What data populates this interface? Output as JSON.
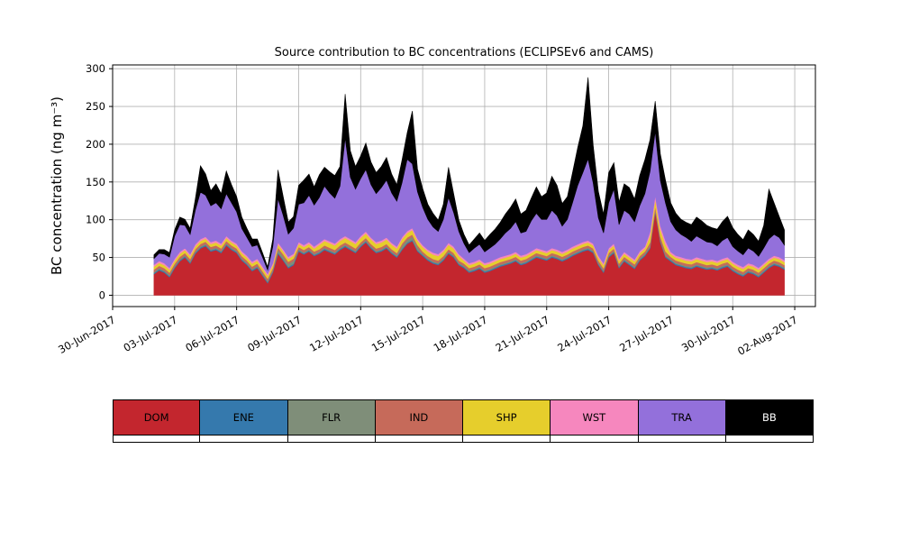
{
  "chart_data": {
    "type": "area",
    "stacked": true,
    "title": "Source contribution to BC concentrations (ECLIPSEv6 and CAMS)",
    "xlabel": "",
    "ylabel": "BC concentration (ng m⁻³)",
    "ylim": [
      0,
      300
    ],
    "xlim": [
      0,
      33
    ],
    "grid": true,
    "legend_position": "bottom",
    "y_ticks": [
      0,
      50,
      100,
      150,
      200,
      250,
      300
    ],
    "x_ticks": [
      {
        "day": 0,
        "label": "30-Jun-2017"
      },
      {
        "day": 3,
        "label": "03-Jul-2017"
      },
      {
        "day": 6,
        "label": "06-Jul-2017"
      },
      {
        "day": 9,
        "label": "09-Jul-2017"
      },
      {
        "day": 12,
        "label": "12-Jul-2017"
      },
      {
        "day": 15,
        "label": "15-Jul-2017"
      },
      {
        "day": 18,
        "label": "18-Jul-2017"
      },
      {
        "day": 21,
        "label": "21-Jul-2017"
      },
      {
        "day": 24,
        "label": "24-Jul-2017"
      },
      {
        "day": 27,
        "label": "27-Jul-2017"
      },
      {
        "day": 30,
        "label": "30-Jul-2017"
      },
      {
        "day": 33,
        "label": "02-Aug-2017"
      }
    ],
    "x_start": 2.0,
    "x_step": 0.25,
    "series": [
      {
        "name": "DOM",
        "color": "#c3262e",
        "values": [
          28,
          33,
          30,
          24,
          36,
          45,
          50,
          42,
          55,
          62,
          65,
          58,
          60,
          56,
          66,
          60,
          56,
          46,
          40,
          32,
          36,
          26,
          16,
          30,
          55,
          46,
          36,
          40,
          58,
          54,
          58,
          52,
          55,
          60,
          57,
          54,
          60,
          64,
          60,
          56,
          64,
          70,
          62,
          56,
          58,
          62,
          55,
          50,
          60,
          68,
          72,
          58,
          52,
          46,
          42,
          40,
          46,
          55,
          50,
          40,
          36,
          30,
          32,
          35,
          30,
          32,
          35,
          38,
          40,
          42,
          45,
          40,
          42,
          46,
          50,
          48,
          46,
          50,
          48,
          45,
          48,
          52,
          55,
          58,
          60,
          56,
          40,
          30,
          50,
          56,
          36,
          45,
          40,
          35,
          46,
          52,
          62,
          110,
          70,
          50,
          45,
          40,
          38,
          36,
          35,
          38,
          36,
          34,
          35,
          33,
          36,
          38,
          32,
          28,
          25,
          30,
          28,
          24,
          30,
          36,
          40,
          38,
          34
        ]
      },
      {
        "name": "ENE",
        "color": "#3579ad",
        "values": [
          1.5,
          1.5,
          1.5,
          1.5,
          1.5,
          1.5,
          1.5,
          1.5,
          1.5,
          1.5,
          1.5,
          1.5,
          1.5,
          1.5,
          1.5,
          1.5,
          1.5,
          1.5,
          1.5,
          1.5,
          1.5,
          1.5,
          1.5,
          1.5,
          1.5,
          1.5,
          1.5,
          1.5,
          1.5,
          1.5,
          1.5,
          1.5,
          1.5,
          1.5,
          1.5,
          1.5,
          1.5,
          1.5,
          1.5,
          1.5,
          1.5,
          1.5,
          1.5,
          1.5,
          1.5,
          1.5,
          1.5,
          1.5,
          1.5,
          1.5,
          1.5,
          1.5,
          1.5,
          1.5,
          1.5,
          1.5,
          1.5,
          1.5,
          1.5,
          1.5,
          1.5,
          1.5,
          1.5,
          1.5,
          1.5,
          1.5,
          1.5,
          1.5,
          1.5,
          1.5,
          1.5,
          1.5,
          1.5,
          1.5,
          1.5,
          1.5,
          1.5,
          1.5,
          1.5,
          1.5,
          1.5,
          1.5,
          1.5,
          1.5,
          1.5,
          1.5,
          1.5,
          1.5,
          1.5,
          1.5,
          1.5,
          1.5,
          1.5,
          1.5,
          1.5,
          1.5,
          1.5,
          1.5,
          1.5,
          1.5,
          1.5,
          1.5,
          1.5,
          1.5,
          1.5,
          1.5,
          1.5,
          1.5,
          1.5,
          1.5,
          1.5,
          1.5,
          1.5,
          1.5,
          1.5,
          1.5,
          1.5,
          1.5,
          1.5,
          1.5,
          1.5,
          1.5,
          1.5
        ]
      },
      {
        "name": "FLR",
        "color": "#7f8e79",
        "values": [
          1.5,
          1.5,
          1.5,
          1.5,
          1.5,
          1.5,
          1.5,
          1.5,
          1.5,
          1.5,
          1.5,
          1.5,
          1.5,
          1.5,
          1.5,
          1.5,
          1.5,
          1.5,
          1.5,
          1.5,
          1.5,
          1.5,
          1.5,
          1.5,
          4,
          4,
          4,
          4,
          1.5,
          1.5,
          1.5,
          1.5,
          1.5,
          1.5,
          1.5,
          1.5,
          1.5,
          1.5,
          1.5,
          1.5,
          1.5,
          1.5,
          1.5,
          1.5,
          1.5,
          1.5,
          1.5,
          1.5,
          4,
          4,
          4,
          4,
          1.5,
          1.5,
          1.5,
          1.5,
          1.5,
          1.5,
          1.5,
          1.5,
          1.5,
          1.5,
          1.5,
          1.5,
          1.5,
          1.5,
          1.5,
          1.5,
          1.5,
          1.5,
          1.5,
          1.5,
          1.5,
          1.5,
          1.5,
          1.5,
          1.5,
          1.5,
          1.5,
          1.5,
          1.5,
          1.5,
          1.5,
          1.5,
          1.5,
          1.5,
          1.5,
          1.5,
          1.5,
          1.5,
          1.5,
          1.5,
          1.5,
          1.5,
          1.5,
          1.5,
          1.5,
          1.5,
          1.5,
          1.5,
          1.5,
          1.5,
          1.5,
          1.5,
          1.5,
          1.5,
          1.5,
          1.5,
          1.5,
          1.5,
          1.5,
          1.5,
          1.5,
          1.5,
          1.5,
          1.5,
          1.5,
          1.5,
          1.5,
          1.5,
          1.5,
          1.5,
          1.5
        ]
      },
      {
        "name": "IND",
        "color": "#c66a5a",
        "values": [
          3,
          3,
          3,
          3,
          3,
          3,
          3,
          3,
          3,
          3,
          3,
          3,
          3,
          3,
          3,
          3,
          3,
          3,
          3,
          3,
          3,
          3,
          3,
          3,
          3,
          3,
          3,
          3,
          3,
          3,
          3,
          3,
          3,
          3,
          3,
          3,
          3,
          3,
          3,
          3,
          3,
          3,
          3,
          3,
          3,
          3,
          3,
          3,
          3,
          3,
          3,
          3,
          3,
          3,
          3,
          3,
          3,
          3,
          3,
          3,
          3,
          3,
          3,
          3,
          3,
          3,
          3,
          3,
          3,
          3,
          3,
          3,
          3,
          3,
          3,
          3,
          3,
          3,
          3,
          3,
          3,
          3,
          3,
          3,
          3,
          3,
          3,
          3,
          3,
          3,
          3,
          3,
          3,
          3,
          3,
          3,
          5,
          5,
          5,
          5,
          3,
          3,
          3,
          3,
          3,
          3,
          3,
          3,
          3,
          3,
          3,
          3,
          3,
          3,
          3,
          3,
          3,
          3,
          3,
          3,
          3,
          3,
          3
        ]
      },
      {
        "name": "SHP",
        "color": "#e6ce2c",
        "values": [
          4,
          4,
          4,
          4,
          4,
          4,
          4,
          4,
          4,
          4,
          4,
          4,
          4,
          4,
          4,
          4,
          4,
          4,
          4,
          4,
          4,
          4,
          4,
          4,
          4,
          4,
          4,
          4,
          4,
          4,
          4,
          4,
          6,
          6,
          6,
          6,
          6,
          6,
          6,
          6,
          6,
          6,
          6,
          6,
          6,
          6,
          6,
          6,
          6,
          6,
          6,
          6,
          6,
          6,
          6,
          6,
          6,
          6,
          6,
          6,
          4,
          4,
          4,
          4,
          4,
          4,
          4,
          4,
          4,
          4,
          4,
          4,
          4,
          4,
          4,
          4,
          4,
          4,
          4,
          4,
          4,
          4,
          4,
          4,
          4,
          4,
          4,
          4,
          4,
          4,
          4,
          4,
          4,
          4,
          4,
          4,
          9,
          9,
          9,
          9,
          4,
          4,
          4,
          4,
          4,
          4,
          4,
          4,
          4,
          4,
          4,
          4,
          4,
          4,
          4,
          4,
          4,
          4,
          4,
          4,
          4,
          4,
          4
        ]
      },
      {
        "name": "WST",
        "color": "#f687be",
        "values": [
          2.5,
          2.5,
          2.5,
          2.5,
          2.5,
          2.5,
          2.5,
          2.5,
          2.5,
          2.5,
          2.5,
          2.5,
          2.5,
          2.5,
          2.5,
          2.5,
          2.5,
          2.5,
          2.5,
          2.5,
          2.5,
          2.5,
          2.5,
          2.5,
          2.5,
          2.5,
          2.5,
          2.5,
          2.5,
          2.5,
          2.5,
          2.5,
          2.5,
          2.5,
          2.5,
          2.5,
          2.5,
          2.5,
          2.5,
          2.5,
          2.5,
          2.5,
          2.5,
          2.5,
          2.5,
          2.5,
          2.5,
          2.5,
          2.5,
          2.5,
          2.5,
          2.5,
          2.5,
          2.5,
          2.5,
          2.5,
          2.5,
          2.5,
          2.5,
          2.5,
          2.5,
          2.5,
          2.5,
          2.5,
          2.5,
          2.5,
          2.5,
          2.5,
          2.5,
          2.5,
          2.5,
          2.5,
          2.5,
          2.5,
          2.5,
          2.5,
          2.5,
          2.5,
          2.5,
          2.5,
          2.5,
          2.5,
          2.5,
          2.5,
          2.5,
          2.5,
          2.5,
          2.5,
          2.5,
          2.5,
          2.5,
          2.5,
          2.5,
          2.5,
          2.5,
          2.5,
          5,
          5,
          5,
          5,
          2.5,
          2.5,
          2.5,
          2.5,
          2.5,
          2.5,
          2.5,
          2.5,
          2.5,
          2.5,
          2.5,
          2.5,
          2.5,
          2.5,
          2.5,
          2.5,
          2.5,
          2.5,
          2.5,
          2.5,
          2.5,
          2.5,
          2.5
        ]
      },
      {
        "name": "TRA",
        "color": "#9370db",
        "values": [
          8,
          10,
          12,
          14,
          30,
          36,
          30,
          26,
          45,
          62,
          55,
          48,
          50,
          46,
          56,
          50,
          42,
          30,
          24,
          20,
          18,
          12,
          5,
          22,
          58,
          45,
          30,
          34,
          50,
          56,
          62,
          55,
          60,
          70,
          64,
          60,
          70,
          130,
          82,
          70,
          76,
          82,
          70,
          64,
          70,
          76,
          66,
          60,
          72,
          95,
          85,
          62,
          50,
          40,
          34,
          30,
          40,
          60,
          45,
          30,
          20,
          14,
          18,
          20,
          15,
          18,
          20,
          24,
          30,
          34,
          40,
          30,
          30,
          40,
          46,
          40,
          42,
          50,
          45,
          34,
          40,
          58,
          78,
          92,
          108,
          80,
          50,
          40,
          60,
          72,
          45,
          55,
          55,
          50,
          60,
          70,
          80,
          85,
          60,
          50,
          40,
          34,
          30,
          28,
          24,
          28,
          26,
          24,
          22,
          20,
          24,
          26,
          20,
          18,
          16,
          20,
          18,
          15,
          20,
          26,
          28,
          26,
          20
        ]
      },
      {
        "name": "BB",
        "color": "#000000",
        "values": [
          5,
          5,
          6,
          6,
          8,
          10,
          8,
          8,
          15,
          35,
          28,
          20,
          25,
          20,
          30,
          24,
          20,
          15,
          12,
          10,
          8,
          6,
          4,
          10,
          38,
          25,
          16,
          15,
          25,
          30,
          28,
          24,
          30,
          25,
          28,
          30,
          26,
          58,
          35,
          30,
          30,
          35,
          30,
          28,
          28,
          30,
          25,
          22,
          30,
          35,
          70,
          30,
          25,
          20,
          18,
          15,
          20,
          40,
          25,
          15,
          12,
          10,
          12,
          15,
          15,
          18,
          20,
          22,
          25,
          28,
          30,
          25,
          28,
          30,
          35,
          30,
          35,
          45,
          40,
          30,
          30,
          40,
          50,
          62,
          108,
          50,
          35,
          25,
          40,
          35,
          30,
          35,
          35,
          30,
          40,
          45,
          42,
          40,
          35,
          30,
          25,
          22,
          20,
          20,
          22,
          25,
          24,
          22,
          20,
          22,
          25,
          28,
          25,
          22,
          20,
          24,
          22,
          20,
          30,
          66,
          42,
          28,
          20
        ]
      }
    ]
  },
  "colors": {
    "gridline": "#b0b0b0",
    "spine": "#000000",
    "background": "#ffffff"
  }
}
